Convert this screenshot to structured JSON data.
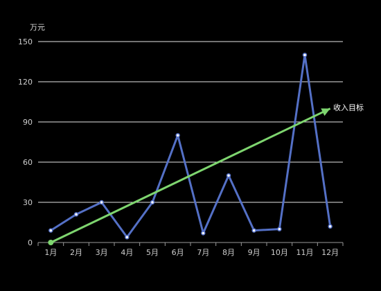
{
  "chart_data": {
    "type": "line",
    "unit_label": "万元",
    "categories": [
      "1月",
      "2月",
      "3月",
      "4月",
      "5月",
      "6月",
      "7月",
      "8月",
      "9月",
      "10月",
      "11月",
      "12月"
    ],
    "yticks": [
      0,
      30,
      60,
      90,
      120,
      150
    ],
    "ylim": [
      0,
      150
    ],
    "grid": true,
    "series": [
      {
        "values": [
          9,
          21,
          30,
          4,
          30,
          80,
          7,
          50,
          9,
          10,
          140,
          12
        ],
        "color": "#5470c6"
      }
    ],
    "target_line": {
      "label": "收入目标",
      "start": {
        "x": "1月",
        "y": 0
      },
      "end": {
        "x": "12月",
        "y": 100
      },
      "color": "#7ed56f"
    },
    "colors": {
      "background": "#000000",
      "grid": "#e6e6e6",
      "axis_text": "#cfcfcf"
    }
  }
}
